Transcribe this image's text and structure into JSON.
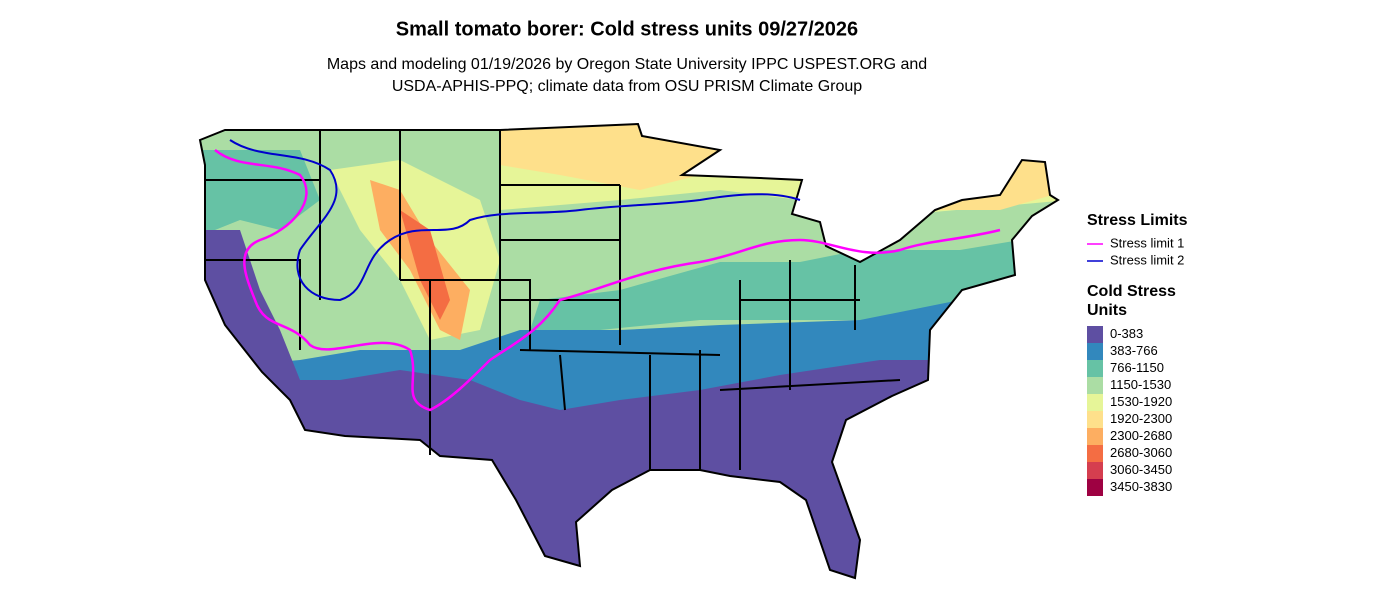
{
  "title": "Small tomato borer: Cold stress units 09/27/2026",
  "subtitle": [
    "Maps and modeling 01/19/2026 by Oregon State University IPPC USPEST.ORG and",
    "USDA-APHIS-PPQ; climate data from OSU PRISM Climate Group"
  ],
  "legend": {
    "lines_title": "Stress Limits",
    "lines": [
      {
        "label": "Stress limit 1",
        "color": "#ff00ff"
      },
      {
        "label": "Stress limit 2",
        "color": "#0000cd"
      }
    ],
    "fill_title": "Cold Stress Units",
    "fills": [
      {
        "label": "0-383",
        "color": "#5e4fa2"
      },
      {
        "label": "383-766",
        "color": "#3288bd"
      },
      {
        "label": "766-1150",
        "color": "#66c2a5"
      },
      {
        "label": "1150-1530",
        "color": "#abdda4"
      },
      {
        "label": "1530-1920",
        "color": "#e6f598"
      },
      {
        "label": "1920-2300",
        "color": "#fee08b"
      },
      {
        "label": "2300-2680",
        "color": "#fdae61"
      },
      {
        "label": "2680-3060",
        "color": "#f46d43"
      },
      {
        "label": "3060-3450",
        "color": "#d53e4f"
      },
      {
        "label": "3450-3830",
        "color": "#9e0142"
      }
    ]
  }
}
